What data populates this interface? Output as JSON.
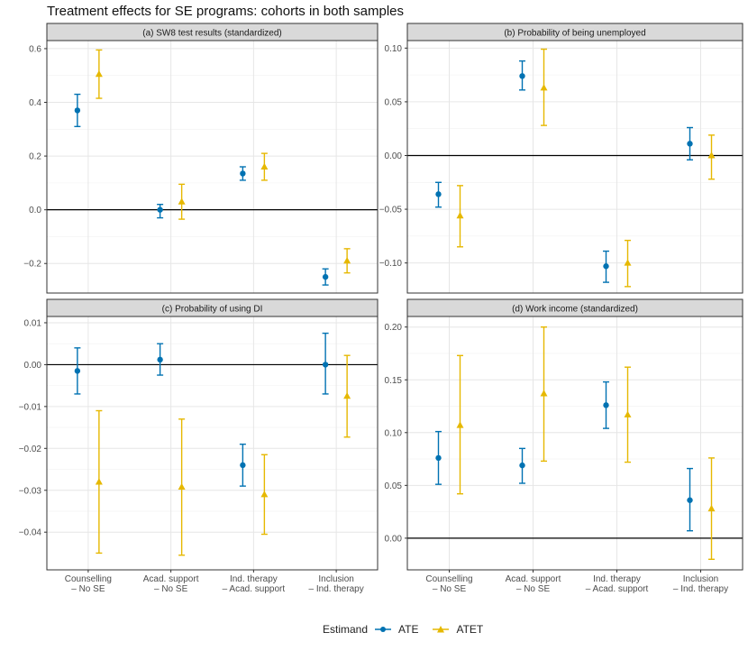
{
  "chart_data": {
    "type": "scatter",
    "title": "Treatment effects for SE programs: cohorts in both samples",
    "categories": [
      [
        "Counselling",
        "– No SE"
      ],
      [
        "Acad. support",
        "– No SE"
      ],
      [
        "Ind. therapy",
        "– Acad. support"
      ],
      [
        "Inclusion",
        "– Ind. therapy"
      ]
    ],
    "legend": {
      "title": "Estimand",
      "position": "bottom",
      "entries": [
        {
          "name": "ATE",
          "color": "#0072B2",
          "shape": "circle"
        },
        {
          "name": "ATET",
          "color": "#E6B800",
          "shape": "triangle"
        }
      ]
    },
    "panels": [
      {
        "title": "(a) SW8 test results (standardized)",
        "ylim": [
          -0.31,
          0.63
        ],
        "ticks": [
          -0.2,
          0.0,
          0.2,
          0.4,
          0.6
        ],
        "tick_labels": [
          "−0.2",
          "0.0",
          "0.2",
          "0.4",
          "0.6"
        ],
        "series": [
          {
            "name": "ATE",
            "est": [
              0.37,
              0.0,
              0.135,
              -0.25
            ],
            "lo": [
              0.31,
              -0.03,
              0.11,
              -0.28
            ],
            "hi": [
              0.43,
              0.02,
              0.16,
              -0.22
            ]
          },
          {
            "name": "ATET",
            "est": [
              0.505,
              0.03,
              0.16,
              -0.19
            ],
            "lo": [
              0.415,
              -0.035,
              0.11,
              -0.235
            ],
            "hi": [
              0.595,
              0.095,
              0.21,
              -0.145
            ]
          }
        ]
      },
      {
        "title": "(b) Probability of being unemployed",
        "ylim": [
          -0.128,
          0.107
        ],
        "ticks": [
          -0.1,
          -0.05,
          0.0,
          0.05,
          0.1
        ],
        "tick_labels": [
          "−0.10",
          "−0.05",
          "0.00",
          "0.05",
          "0.10"
        ],
        "series": [
          {
            "name": "ATE",
            "est": [
              -0.036,
              0.074,
              -0.103,
              0.011
            ],
            "lo": [
              -0.048,
              0.061,
              -0.118,
              -0.004
            ],
            "hi": [
              -0.025,
              0.088,
              -0.089,
              0.026
            ]
          },
          {
            "name": "ATET",
            "est": [
              -0.056,
              0.063,
              -0.1,
              0.0
            ],
            "lo": [
              -0.085,
              0.028,
              -0.122,
              -0.022
            ],
            "hi": [
              -0.028,
              0.099,
              -0.079,
              0.019
            ]
          }
        ]
      },
      {
        "title": "(c) Probability of using DI",
        "ylim": [
          -0.049,
          0.0115
        ],
        "ticks": [
          -0.04,
          -0.03,
          -0.02,
          -0.01,
          0.0,
          0.01
        ],
        "tick_labels": [
          "−0.04",
          "−0.03",
          "−0.02",
          "−0.01",
          "0.00",
          "0.01"
        ],
        "series": [
          {
            "name": "ATE",
            "est": [
              -0.0015,
              0.0012,
              -0.024,
              0.0
            ],
            "lo": [
              -0.007,
              -0.0025,
              -0.029,
              -0.007
            ],
            "hi": [
              0.004,
              0.005,
              -0.019,
              0.0075
            ]
          },
          {
            "name": "ATET",
            "est": [
              -0.028,
              -0.0292,
              -0.031,
              -0.0075
            ],
            "lo": [
              -0.045,
              -0.0455,
              -0.0405,
              -0.0173
            ],
            "hi": [
              -0.011,
              -0.013,
              -0.0215,
              0.0022
            ]
          }
        ]
      },
      {
        "title": "(d) Work income (standardized)",
        "ylim": [
          -0.03,
          0.21
        ],
        "ticks": [
          0.0,
          0.05,
          0.1,
          0.15,
          0.2
        ],
        "tick_labels": [
          "0.00",
          "0.05",
          "0.10",
          "0.15",
          "0.20"
        ],
        "series": [
          {
            "name": "ATE",
            "est": [
              0.076,
              0.069,
              0.126,
              0.036
            ],
            "lo": [
              0.051,
              0.052,
              0.104,
              0.007
            ],
            "hi": [
              0.101,
              0.085,
              0.148,
              0.066
            ]
          },
          {
            "name": "ATET",
            "est": [
              0.107,
              0.137,
              0.117,
              0.028
            ],
            "lo": [
              0.042,
              0.073,
              0.072,
              -0.02
            ],
            "hi": [
              0.173,
              0.2,
              0.162,
              0.076
            ]
          }
        ]
      }
    ]
  }
}
